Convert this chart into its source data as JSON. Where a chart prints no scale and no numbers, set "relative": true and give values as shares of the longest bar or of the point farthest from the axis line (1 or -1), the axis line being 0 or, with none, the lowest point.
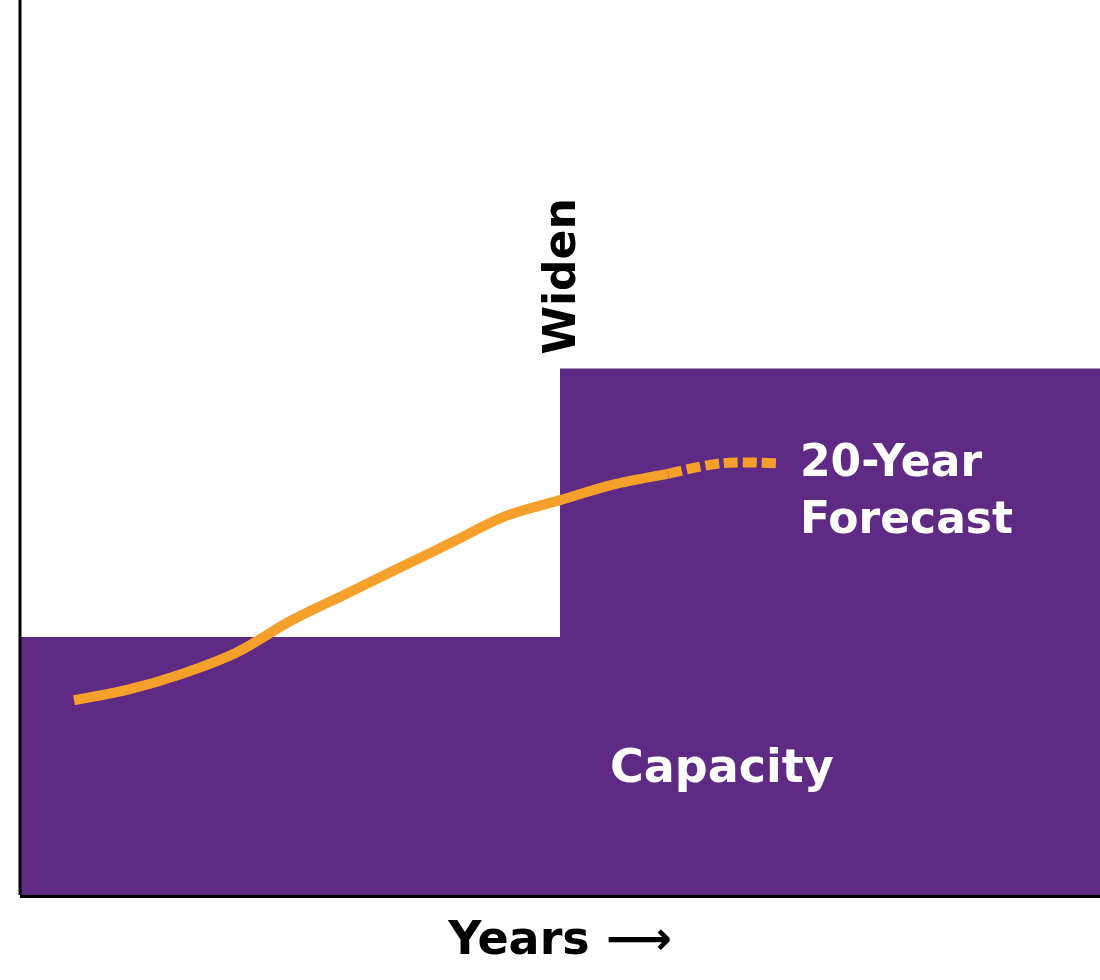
{
  "chart_data": {
    "type": "area",
    "relative": true,
    "xlabel": "Years ⟶",
    "annotations": [
      "Widen"
    ],
    "categories": [
      null,
      null,
      null,
      null,
      null,
      null,
      null,
      null,
      null,
      null,
      null,
      null,
      null,
      null,
      null,
      null,
      null,
      null,
      null,
      null,
      null
    ],
    "series": [
      {
        "name": "Capacity",
        "color": "#5e2a84",
        "values": [
          0.49,
          0.49,
          0.49,
          0.49,
          0.49,
          0.49,
          0.49,
          0.49,
          0.49,
          0.49,
          1,
          1,
          1,
          1,
          1,
          1,
          1,
          1,
          1,
          1,
          1
        ]
      },
      {
        "type": "line",
        "color": "#f5a02a",
        "line_style": "solid",
        "values": [
          null,
          0.37,
          0.39,
          0.42,
          0.46,
          0.52,
          0.57,
          0.62,
          0.67,
          0.72,
          0.75,
          0.78,
          0.8,
          null,
          null,
          null,
          null,
          null,
          null,
          null,
          null
        ]
      },
      {
        "name": "20-Year Forecast",
        "type": "line",
        "color": "#f5a02a",
        "line_style": "dashed",
        "values": [
          null,
          null,
          null,
          null,
          null,
          null,
          null,
          null,
          null,
          null,
          null,
          null,
          0.8,
          0.82,
          0.82,
          null,
          null,
          null,
          null,
          null,
          null
        ]
      }
    ],
    "legend": false,
    "tick_labels": false
  }
}
